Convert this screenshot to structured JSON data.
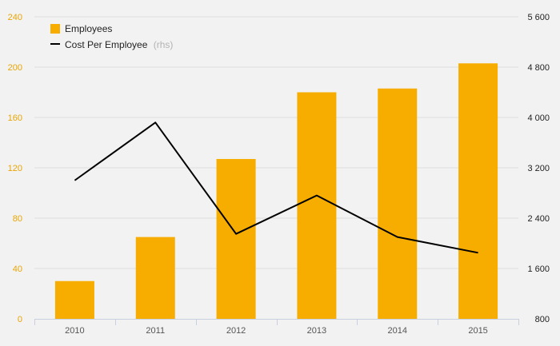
{
  "chart_data": {
    "type": "bar",
    "categories": [
      "2010",
      "2011",
      "2012",
      "2013",
      "2014",
      "2015"
    ],
    "series": [
      {
        "name": "Employees",
        "type": "bar",
        "axis": "left",
        "color": "#f7ad00",
        "values": [
          30,
          65,
          127,
          180,
          183,
          203
        ]
      },
      {
        "name": "Cost Per Employee",
        "type": "line",
        "axis": "right",
        "color": "#000000",
        "values": [
          3000,
          3920,
          2150,
          2760,
          2100,
          1850
        ]
      }
    ],
    "legend": {
      "position": "top-left",
      "items": [
        {
          "label": "Employees",
          "suffix": ""
        },
        {
          "label": "Cost Per Employee",
          "suffix": "(rhs)"
        }
      ]
    },
    "y_left": {
      "ylim": [
        0,
        240
      ],
      "ticks": [
        0,
        40,
        80,
        120,
        160,
        200,
        240
      ],
      "tick_labels": [
        "0",
        "40",
        "80",
        "120",
        "160",
        "200",
        "240"
      ],
      "color": "#e8a600"
    },
    "y_right": {
      "ylim": [
        800,
        5600
      ],
      "ticks": [
        800,
        1600,
        2400,
        3200,
        4000,
        4800,
        5600
      ],
      "tick_labels": [
        "800",
        "1 600",
        "2 400",
        "3 200",
        "4 000",
        "4 800",
        "5 600"
      ]
    },
    "grid": true
  }
}
